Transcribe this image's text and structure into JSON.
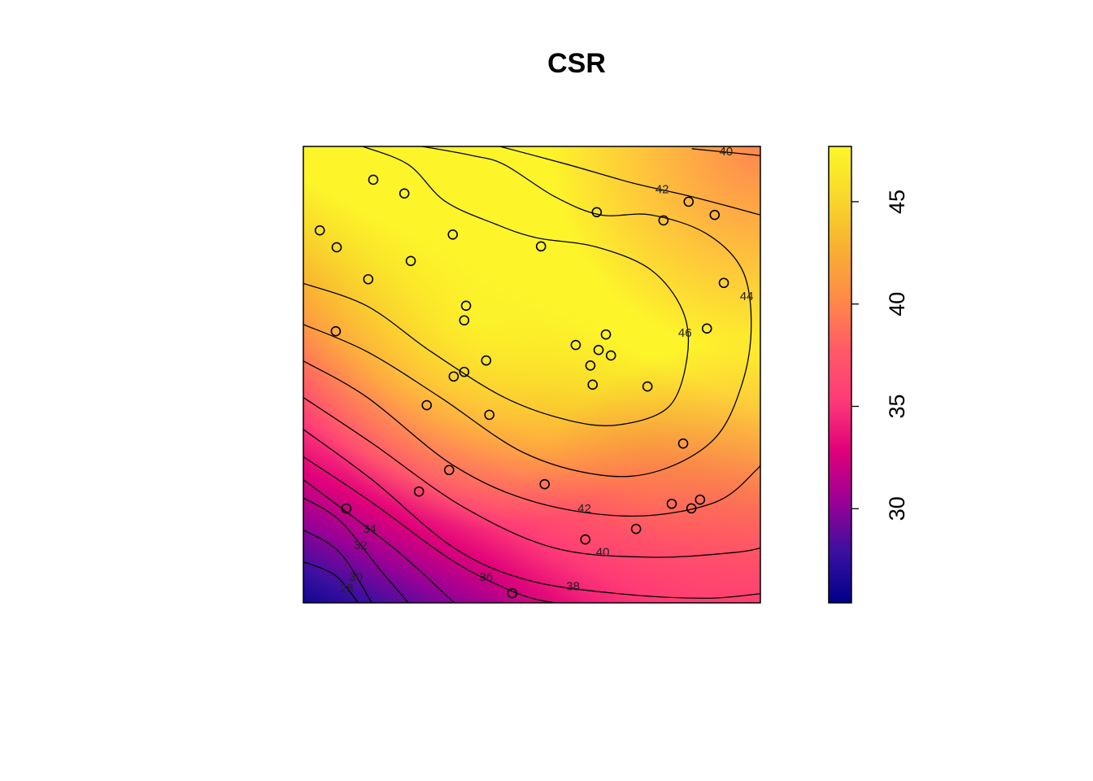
{
  "chart_data": {
    "type": "scatter",
    "title": "CSR",
    "x": [
      0.153,
      0.221,
      0.036,
      0.073,
      0.327,
      0.235,
      0.142,
      0.52,
      0.642,
      0.788,
      0.843,
      0.9,
      0.92,
      0.883,
      0.356,
      0.352,
      0.071,
      0.662,
      0.596,
      0.646,
      0.673,
      0.628,
      0.4,
      0.329,
      0.352,
      0.633,
      0.753,
      0.27,
      0.407,
      0.831,
      0.319,
      0.528,
      0.253,
      0.806,
      0.868,
      0.849,
      0.094,
      0.617,
      0.728,
      0.457
    ],
    "y": [
      0.927,
      0.897,
      0.816,
      0.779,
      0.807,
      0.749,
      0.709,
      0.781,
      0.856,
      0.838,
      0.879,
      0.85,
      0.701,
      0.601,
      0.651,
      0.619,
      0.595,
      0.588,
      0.565,
      0.554,
      0.542,
      0.52,
      0.531,
      0.496,
      0.506,
      0.478,
      0.474,
      0.433,
      0.412,
      0.349,
      0.291,
      0.26,
      0.244,
      0.217,
      0.226,
      0.207,
      0.207,
      0.139,
      0.162,
      0.021
    ],
    "xlim": [
      0,
      1
    ],
    "ylim": [
      0,
      1
    ],
    "zlim": [
      25.4,
      47.7
    ],
    "zticks": [
      30,
      35,
      40,
      45
    ],
    "colors": [
      "#00008b",
      "#3a10a0",
      "#9a0096",
      "#e0007a",
      "#ff3a78",
      "#ff5a66",
      "#ff8a48",
      "#f8b032",
      "#f8d82a",
      "#fdf52a"
    ],
    "contours": [
      {
        "level": 46,
        "x": [
          0,
          0.14,
          0.28,
          0.44,
          0.58,
          0.69,
          0.8,
          0.84,
          0.83,
          0.76,
          0.64,
          0.51,
          0.42,
          0.31,
          0.23,
          0.13
        ],
        "y": [
          0.7,
          0.65,
          0.55,
          0.45,
          0.4,
          0.39,
          0.43,
          0.54,
          0.64,
          0.73,
          0.78,
          0.8,
          0.83,
          0.88,
          0.96,
          1.0
        ]
      },
      {
        "level": 44,
        "x": [
          0,
          0.14,
          0.3,
          0.48,
          0.65,
          0.78,
          0.9,
          0.96,
          0.98,
          0.96,
          0.88,
          0.76,
          0.65,
          0.55,
          0.44,
          0.37,
          0.26
        ],
        "y": [
          0.61,
          0.55,
          0.45,
          0.33,
          0.28,
          0.29,
          0.36,
          0.48,
          0.61,
          0.73,
          0.81,
          0.85,
          0.85,
          0.89,
          0.96,
          0.98,
          1.0
        ]
      },
      {
        "level": 42,
        "x": [
          0,
          0.14,
          0.33,
          0.51,
          0.72,
          0.9,
          0.99,
          1
        ],
        "y": [
          0.53,
          0.45,
          0.3,
          0.22,
          0.19,
          0.22,
          0.29,
          0.31
        ]
      },
      {
        "level": 42,
        "x": [
          0.43,
          0.58,
          0.72,
          0.85,
          1
        ],
        "y": [
          1.0,
          0.96,
          0.92,
          0.89,
          0.85
        ]
      },
      {
        "level": 40,
        "x": [
          0,
          0.15,
          0.35,
          0.55,
          0.76,
          0.94,
          1
        ],
        "y": [
          0.45,
          0.35,
          0.21,
          0.12,
          0.1,
          0.11,
          0.12
        ]
      },
      {
        "level": 40,
        "x": [
          0.85,
          1
        ],
        "y": [
          0.995,
          0.98
        ]
      },
      {
        "level": 38,
        "x": [
          0,
          0.15,
          0.33,
          0.49,
          0.69,
          0.88,
          1
        ],
        "y": [
          0.38,
          0.27,
          0.12,
          0.05,
          0.02,
          0.01,
          0.02
        ]
      },
      {
        "level": 36,
        "x": [
          0,
          0.15,
          0.33,
          0.47,
          0.55
        ],
        "y": [
          0.32,
          0.22,
          0.09,
          0.02,
          0
        ]
      },
      {
        "level": 34,
        "x": [
          0,
          0.08,
          0.21,
          0.33
        ],
        "y": [
          0.27,
          0.21,
          0.11,
          0
        ]
      },
      {
        "level": 32,
        "x": [
          0,
          0.08,
          0.17,
          0.23
        ],
        "y": [
          0.23,
          0.18,
          0.07,
          0
        ]
      },
      {
        "level": 30,
        "x": [
          0,
          0.08,
          0.15
        ],
        "y": [
          0.16,
          0.11,
          0
        ]
      },
      {
        "level": 28,
        "x": [
          0,
          0.07,
          0.12
        ],
        "y": [
          0.09,
          0.06,
          0
        ]
      }
    ]
  }
}
